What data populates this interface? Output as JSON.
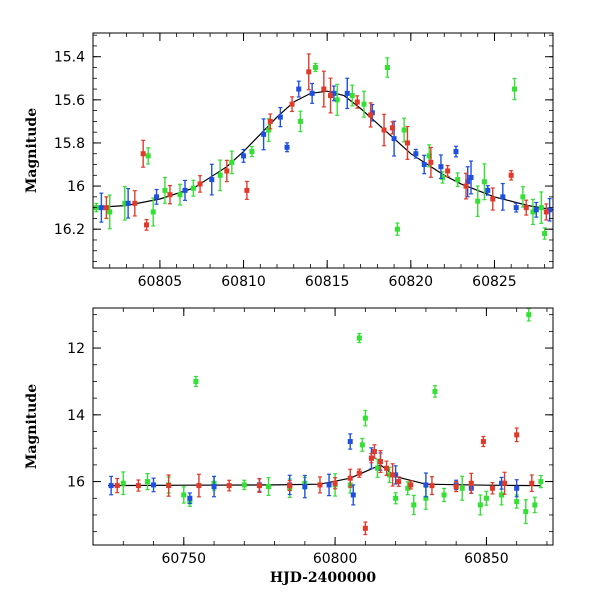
{
  "colors": {
    "blue": "#1f4fe0",
    "green": "#33e033",
    "red": "#e23a2a",
    "model": "#000000"
  },
  "chart_data": [
    {
      "type": "scatter",
      "title": "",
      "xlabel": "",
      "ylabel": "Magnitude",
      "xlim": [
        60801,
        60828.5
      ],
      "ylim": [
        16.38,
        15.29
      ],
      "y_inverted": true,
      "xticks": [
        60805,
        60810,
        60815,
        60820,
        60825
      ],
      "yticks": [
        15.4,
        15.6,
        15.8,
        16,
        16.2
      ],
      "ytick_labels": [
        "15.4",
        "15.6",
        "15.8",
        "16",
        "16.2"
      ],
      "model_curve": {
        "x": [
          60801,
          60803,
          60805,
          60807,
          60809,
          60810,
          60811,
          60812,
          60813,
          60814,
          60815,
          60816,
          60817,
          60818,
          60819,
          60820,
          60821,
          60822,
          60823,
          60825,
          60827,
          60828.5
        ],
        "y": [
          16.1,
          16.09,
          16.06,
          16.01,
          15.91,
          15.84,
          15.76,
          15.68,
          15.61,
          15.57,
          15.56,
          15.58,
          15.64,
          15.71,
          15.78,
          15.85,
          15.9,
          15.95,
          15.99,
          16.05,
          16.09,
          16.11
        ]
      },
      "series": [
        {
          "color": "green",
          "points": [
            [
              60801.2,
              16.1
            ],
            [
              60802.0,
              16.12
            ],
            [
              60802.9,
              16.08
            ],
            [
              60804.3,
              15.86
            ],
            [
              60804.6,
              16.12
            ],
            [
              60806.2,
              16.04
            ],
            [
              60808.6,
              15.95
            ],
            [
              60809.3,
              15.89
            ],
            [
              60811.5,
              15.74
            ],
            [
              60813.4,
              15.7
            ],
            [
              60814.3,
              15.45
            ],
            [
              60815.6,
              15.6
            ],
            [
              60817.2,
              15.62
            ],
            [
              60818.6,
              15.45
            ],
            [
              60819.6,
              15.74
            ],
            [
              60819.2,
              16.2
            ],
            [
              60821.1,
              15.86
            ],
            [
              60822.8,
              15.97
            ],
            [
              60824.4,
              15.98
            ],
            [
              60826.2,
              15.55
            ],
            [
              60827.3,
              16.12
            ],
            [
              60828.0,
              16.22
            ],
            [
              60827.8,
              16.1
            ],
            [
              60826.7,
              16.05
            ],
            [
              60824.0,
              16.07
            ],
            [
              60821.9,
              15.96
            ],
            [
              60816.5,
              15.58
            ],
            [
              60810.5,
              15.84
            ],
            [
              60807.0,
              16.01
            ],
            [
              60805.3,
              16.02
            ]
          ]
        },
        {
          "color": "blue",
          "points": [
            [
              60801.5,
              16.1
            ],
            [
              60803.1,
              16.08
            ],
            [
              60804.8,
              16.05
            ],
            [
              60806.5,
              16.02
            ],
            [
              60808.1,
              15.97
            ],
            [
              60810.0,
              15.86
            ],
            [
              60811.2,
              15.76
            ],
            [
              60812.2,
              15.68
            ],
            [
              60812.6,
              15.82
            ],
            [
              60813.3,
              15.55
            ],
            [
              60814.1,
              15.57
            ],
            [
              60815.4,
              15.57
            ],
            [
              60816.2,
              15.57
            ],
            [
              60817.7,
              15.66
            ],
            [
              60819.0,
              15.78
            ],
            [
              60820.3,
              15.85
            ],
            [
              60821.8,
              15.91
            ],
            [
              60822.7,
              15.84
            ],
            [
              60823.6,
              15.96
            ],
            [
              60824.6,
              16.02
            ],
            [
              60825.5,
              16.05
            ],
            [
              60826.3,
              16.1
            ],
            [
              60827.5,
              16.11
            ],
            [
              60828.3,
              16.11
            ],
            [
              60823.4,
              15.98
            ],
            [
              60820.8,
              15.9
            ]
          ]
        },
        {
          "color": "red",
          "points": [
            [
              60801.8,
              16.1
            ],
            [
              60803.5,
              16.08
            ],
            [
              60804.0,
              15.85
            ],
            [
              60804.2,
              16.18
            ],
            [
              60805.6,
              16.04
            ],
            [
              60807.4,
              15.99
            ],
            [
              60809.0,
              15.93
            ],
            [
              60810.2,
              16.02
            ],
            [
              60811.6,
              15.7
            ],
            [
              60812.9,
              15.62
            ],
            [
              60813.9,
              15.47
            ],
            [
              60814.8,
              15.55
            ],
            [
              60816.8,
              15.61
            ],
            [
              60817.6,
              15.67
            ],
            [
              60818.4,
              15.74
            ],
            [
              60819.8,
              15.8
            ],
            [
              60821.2,
              15.89
            ],
            [
              60822.2,
              15.93
            ],
            [
              60823.3,
              16.0
            ],
            [
              60824.9,
              16.06
            ],
            [
              60826.0,
              15.95
            ],
            [
              60826.9,
              16.1
            ],
            [
              60828.1,
              16.12
            ],
            [
              60815.2,
              15.58
            ],
            [
              60818.9,
              15.73
            ]
          ]
        }
      ]
    },
    {
      "type": "scatter",
      "title": "",
      "xlabel": "HJD-2400000",
      "ylabel": "Magnitude",
      "xlim": [
        60720,
        60872
      ],
      "ylim": [
        17.9,
        10.8
      ],
      "y_inverted": true,
      "xticks": [
        60750,
        60800,
        60850
      ],
      "yticks": [
        12,
        14,
        16
      ],
      "ytick_labels": [
        "12",
        "14",
        "16"
      ],
      "model_curve": {
        "x": [
          60725,
          60750,
          60780,
          60795,
          60805,
          60810,
          60815,
          60820,
          60830,
          60850,
          60868
        ],
        "y": [
          16.12,
          16.11,
          16.1,
          16.08,
          15.9,
          15.7,
          15.5,
          15.85,
          16.08,
          16.11,
          16.12
        ]
      },
      "series": [
        {
          "color": "green",
          "points": [
            [
              60730,
              16.05
            ],
            [
              60738,
              16.0
            ],
            [
              60745,
              16.1
            ],
            [
              60750,
              16.4
            ],
            [
              60752,
              16.6
            ],
            [
              60754,
              13.0
            ],
            [
              60760,
              16.05
            ],
            [
              60770,
              16.1
            ],
            [
              60778,
              16.15
            ],
            [
              60785,
              16.2
            ],
            [
              60790,
              16.05
            ],
            [
              60800,
              16.1
            ],
            [
              60805,
              16.1
            ],
            [
              60808,
              11.7
            ],
            [
              60809,
              14.9
            ],
            [
              60810,
              14.1
            ],
            [
              60814,
              15.6
            ],
            [
              60818,
              15.8
            ],
            [
              60820,
              16.5
            ],
            [
              60824,
              16.2
            ],
            [
              60826,
              16.7
            ],
            [
              60830,
              16.5
            ],
            [
              60833,
              13.3
            ],
            [
              60836,
              16.4
            ],
            [
              60842,
              16.2
            ],
            [
              60848,
              16.7
            ],
            [
              60850,
              16.5
            ],
            [
              60855,
              16.4
            ],
            [
              60860,
              16.6
            ],
            [
              60863,
              16.9
            ],
            [
              60864,
              11.0
            ],
            [
              60866,
              16.7
            ],
            [
              60868,
              16.0
            ]
          ]
        },
        {
          "color": "blue",
          "points": [
            [
              60726,
              16.12
            ],
            [
              60740,
              16.1
            ],
            [
              60752,
              16.5
            ],
            [
              60760,
              16.15
            ],
            [
              60775,
              16.1
            ],
            [
              60785,
              16.1
            ],
            [
              60790,
              16.15
            ],
            [
              60798,
              16.1
            ],
            [
              60805,
              14.8
            ],
            [
              60806,
              16.4
            ],
            [
              60812,
              15.3
            ],
            [
              60815,
              15.4
            ],
            [
              60820,
              15.8
            ],
            [
              60830,
              16.1
            ],
            [
              60840,
              16.1
            ],
            [
              60845,
              16.2
            ],
            [
              60855,
              16.05
            ],
            [
              60860,
              16.2
            ]
          ]
        },
        {
          "color": "red",
          "points": [
            [
              60728,
              16.12
            ],
            [
              60735,
              16.12
            ],
            [
              60745,
              16.12
            ],
            [
              60755,
              16.12
            ],
            [
              60765,
              16.12
            ],
            [
              60775,
              16.12
            ],
            [
              60785,
              16.12
            ],
            [
              60795,
              16.1
            ],
            [
              60800,
              16.05
            ],
            [
              60805,
              15.9
            ],
            [
              60808,
              15.75
            ],
            [
              60810,
              17.4
            ],
            [
              60812,
              15.3
            ],
            [
              60813,
              15.1
            ],
            [
              60815,
              15.4
            ],
            [
              60817,
              15.6
            ],
            [
              60819,
              15.8
            ],
            [
              60821,
              16.0
            ],
            [
              60825,
              16.1
            ],
            [
              60832,
              16.12
            ],
            [
              60840,
              16.15
            ],
            [
              60845,
              16.05
            ],
            [
              60849,
              14.8
            ],
            [
              60852,
              16.2
            ],
            [
              60856,
              16.05
            ],
            [
              60860,
              14.6
            ],
            [
              60865,
              16.05
            ]
          ]
        }
      ]
    }
  ]
}
